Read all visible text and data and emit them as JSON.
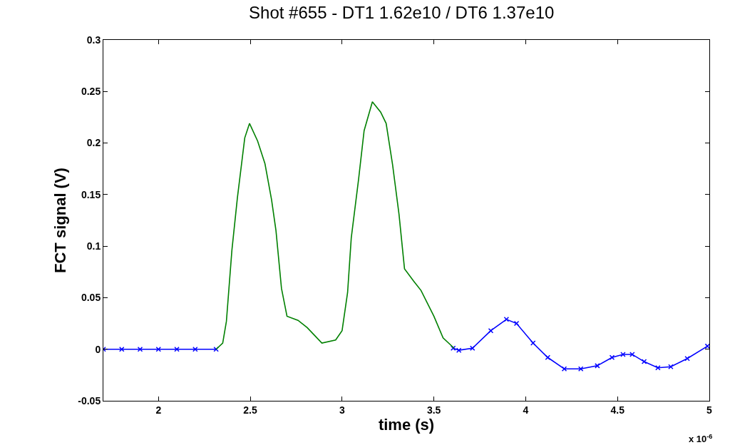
{
  "chart_data": {
    "type": "line",
    "title": "Shot #655 - DT1 1.62e10 / DT6 1.37e10",
    "xlabel": "time (s)",
    "ylabel": "FCT signal (V)",
    "annotations": [
      "x 10$^{-6}$"
    ],
    "series": [
      {
        "color": "#0000ff",
        "marker": "cross",
        "x": [
          1.7,
          1.8,
          1.9,
          2.0,
          2.1,
          2.2,
          2.314,
          3.0,
          3.605,
          3.636,
          3.71,
          3.81,
          3.895,
          3.95,
          4.04,
          4.12,
          4.21,
          4.3,
          4.39,
          4.47,
          4.53,
          4.58,
          4.645,
          4.72,
          4.79,
          4.88,
          4.99
        ],
        "values": [
          0,
          0,
          0,
          0,
          0,
          0,
          0,
          null,
          0.001,
          -0.001,
          0.001,
          0.018,
          0.029,
          0.025,
          0.006,
          -0.008,
          -0.019,
          -0.019,
          -0.016,
          -0.008,
          -0.005,
          -0.005,
          -0.012,
          -0.018,
          -0.017,
          -0.009,
          0.003
        ]
      },
      {
        "color": "#008000",
        "marker": "none",
        "x": [
          2.314,
          2.35,
          2.37,
          2.4,
          2.43,
          2.47,
          2.496,
          2.54,
          2.58,
          2.616,
          2.64,
          2.67,
          2.7,
          2.76,
          2.81,
          2.89,
          2.965,
          3.0,
          3.03,
          3.05,
          3.09,
          3.12,
          3.165,
          3.21,
          3.24,
          3.275,
          3.31,
          3.34,
          3.39,
          3.43,
          3.5,
          3.55,
          3.61
        ],
        "values": [
          0,
          0.006,
          0.027,
          0.096,
          0.147,
          0.205,
          0.219,
          0.202,
          0.18,
          0.145,
          0.115,
          0.059,
          0.032,
          0.028,
          0.021,
          0.006,
          0.009,
          0.018,
          0.055,
          0.108,
          0.165,
          0.212,
          0.24,
          0.23,
          0.219,
          0.179,
          0.131,
          0.078,
          0.066,
          0.057,
          0.032,
          0.011,
          0.001
        ]
      }
    ],
    "xlim": [
      1.7,
      5
    ],
    "xticks": [
      2,
      2.5,
      3,
      3.5,
      4,
      4.5,
      5
    ],
    "ylim": [
      -0.05,
      0.3
    ],
    "yticks": [
      -0.05,
      0,
      0.05,
      0.1,
      0.15,
      0.2,
      0.25,
      0.3
    ],
    "grid": false,
    "line_style": "solid"
  }
}
